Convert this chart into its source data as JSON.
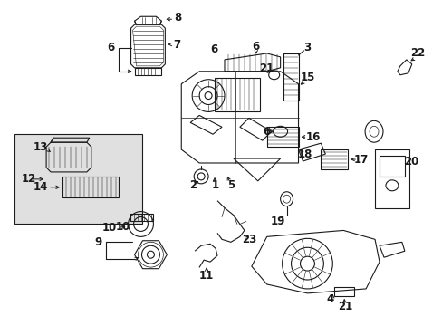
{
  "bg_color": "#ffffff",
  "line_color": "#1a1a1a",
  "gray_fill": "#e8e8e8",
  "figsize": [
    4.89,
    3.6
  ],
  "dpi": 100
}
